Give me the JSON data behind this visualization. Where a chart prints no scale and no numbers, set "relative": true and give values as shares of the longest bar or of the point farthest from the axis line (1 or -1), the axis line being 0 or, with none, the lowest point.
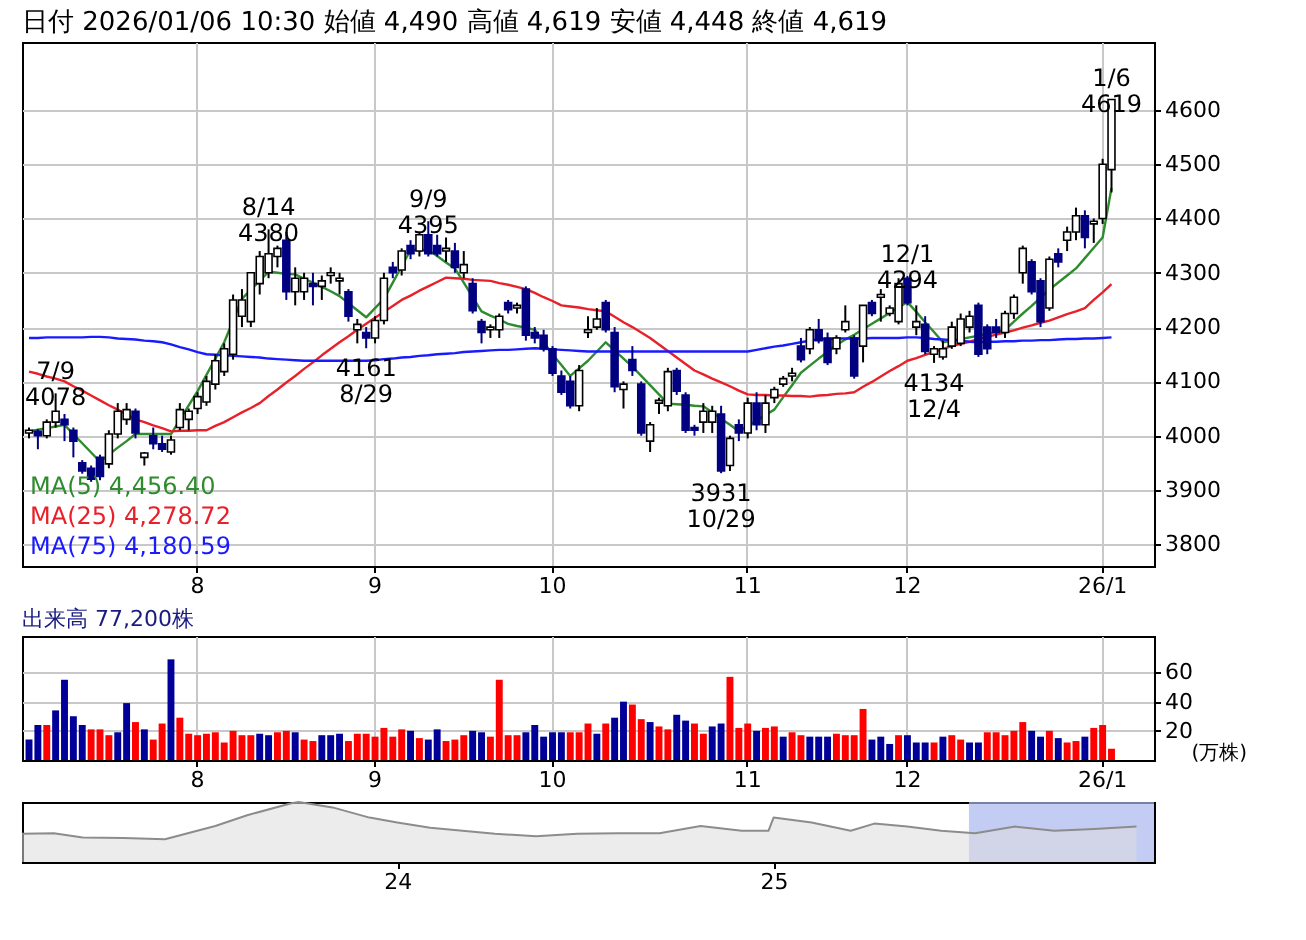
{
  "chart_data": [
    {
      "type": "candlestick",
      "title": "日付 2026/01/06 10:30 始値 4,490 高値 4,619 安値 4,448 終値 4,619",
      "categories": [
        null,
        null,
        null,
        null,
        null,
        null,
        null,
        null,
        null,
        null,
        null,
        null,
        null,
        null,
        null,
        null,
        null,
        null,
        null,
        "8",
        null,
        null,
        null,
        null,
        null,
        null,
        null,
        null,
        null,
        null,
        null,
        null,
        null,
        null,
        null,
        null,
        null,
        null,
        null,
        "9",
        null,
        null,
        null,
        null,
        null,
        null,
        null,
        null,
        null,
        null,
        null,
        null,
        null,
        null,
        null,
        null,
        null,
        null,
        null,
        "10",
        null,
        null,
        null,
        null,
        null,
        null,
        null,
        null,
        null,
        null,
        null,
        null,
        null,
        null,
        null,
        null,
        null,
        null,
        null,
        null,
        null,
        "11",
        null,
        null,
        null,
        null,
        null,
        null,
        null,
        null,
        null,
        null,
        null,
        null,
        null,
        null,
        null,
        null,
        null,
        "12",
        null,
        null,
        null,
        null,
        null,
        null,
        null,
        null,
        null,
        null,
        null,
        null,
        null,
        null,
        null,
        null,
        null,
        null,
        null,
        null,
        null,
        "26/1",
        null
      ],
      "ohlc": [
        [
          4005,
          4015,
          3995,
          4010
        ],
        [
          4008,
          4012,
          3975,
          4000
        ],
        [
          4000,
          4030,
          3995,
          4025
        ],
        [
          4025,
          4078,
          4015,
          4045
        ],
        [
          4030,
          4040,
          3990,
          4020
        ],
        [
          4010,
          4015,
          3960,
          3990
        ],
        [
          3950,
          3955,
          3930,
          3935
        ],
        [
          3940,
          3945,
          3915,
          3920
        ],
        [
          3960,
          3965,
          3918,
          3925
        ],
        [
          3948,
          4010,
          3940,
          4003
        ],
        [
          4003,
          4060,
          3995,
          4045
        ],
        [
          4030,
          4060,
          4020,
          4048
        ],
        [
          4045,
          4050,
          3995,
          4005
        ],
        [
          3960,
          3970,
          3945,
          3968
        ],
        [
          4000,
          4015,
          3975,
          3985
        ],
        [
          3985,
          4000,
          3970,
          3975
        ],
        [
          3970,
          4000,
          3965,
          3992
        ],
        [
          4015,
          4060,
          4010,
          4048
        ],
        [
          4030,
          4050,
          4010,
          4045
        ],
        [
          4050,
          4080,
          4040,
          4072
        ],
        [
          4062,
          4110,
          4055,
          4100
        ],
        [
          4095,
          4150,
          4085,
          4138
        ],
        [
          4118,
          4170,
          4110,
          4160
        ],
        [
          4150,
          4260,
          4140,
          4250
        ],
        [
          4220,
          4270,
          4200,
          4250
        ],
        [
          4210,
          4300,
          4200,
          4300
        ],
        [
          4280,
          4340,
          4260,
          4330
        ],
        [
          4300,
          4380,
          4290,
          4335
        ],
        [
          4330,
          4350,
          4310,
          4345
        ],
        [
          4360,
          4375,
          4250,
          4265
        ],
        [
          4265,
          4310,
          4240,
          4290
        ],
        [
          4265,
          4300,
          4250,
          4290
        ],
        [
          4280,
          4300,
          4240,
          4275
        ],
        [
          4275,
          4295,
          4250,
          4285
        ],
        [
          4295,
          4310,
          4280,
          4300
        ],
        [
          4285,
          4300,
          4260,
          4290
        ],
        [
          4265,
          4270,
          4210,
          4220
        ],
        [
          4195,
          4215,
          4170,
          4205
        ],
        [
          4190,
          4200,
          4161,
          4180
        ],
        [
          4180,
          4220,
          4170,
          4212
        ],
        [
          4212,
          4300,
          4205,
          4290
        ],
        [
          4310,
          4320,
          4290,
          4300
        ],
        [
          4305,
          4345,
          4295,
          4340
        ],
        [
          4350,
          4360,
          4325,
          4335
        ],
        [
          4340,
          4375,
          4330,
          4370
        ],
        [
          4370,
          4395,
          4330,
          4335
        ],
        [
          4350,
          4370,
          4330,
          4335
        ],
        [
          4340,
          4365,
          4320,
          4345
        ],
        [
          4340,
          4355,
          4300,
          4310
        ],
        [
          4300,
          4340,
          4290,
          4315
        ],
        [
          4280,
          4290,
          4225,
          4230
        ],
        [
          4210,
          4215,
          4170,
          4190
        ],
        [
          4195,
          4205,
          4180,
          4200
        ],
        [
          4195,
          4225,
          4180,
          4220
        ],
        [
          4245,
          4250,
          4225,
          4232
        ],
        [
          4235,
          4245,
          4225,
          4240
        ],
        [
          4270,
          4275,
          4175,
          4185
        ],
        [
          4190,
          4200,
          4170,
          4180
        ],
        [
          4185,
          4195,
          4155,
          4160
        ],
        [
          4160,
          4165,
          4110,
          4115
        ],
        [
          4110,
          4120,
          4075,
          4080
        ],
        [
          4100,
          4110,
          4050,
          4055
        ],
        [
          4055,
          4130,
          4045,
          4120
        ],
        [
          4190,
          4220,
          4180,
          4195
        ],
        [
          4200,
          4235,
          4195,
          4215
        ],
        [
          4245,
          4250,
          4190,
          4195
        ],
        [
          4190,
          4200,
          4080,
          4090
        ],
        [
          4085,
          4100,
          4050,
          4095
        ],
        [
          4140,
          4165,
          4110,
          4120
        ],
        [
          4095,
          4100,
          4000,
          4005
        ],
        [
          3990,
          4025,
          3970,
          4020
        ],
        [
          4060,
          4070,
          4040,
          4065
        ],
        [
          4055,
          4125,
          4045,
          4118
        ],
        [
          4120,
          4125,
          4075,
          4082
        ],
        [
          4075,
          4080,
          4005,
          4010
        ],
        [
          4015,
          4020,
          4000,
          4010
        ],
        [
          4025,
          4060,
          4005,
          4045
        ],
        [
          4025,
          4055,
          4005,
          4045
        ],
        [
          4040,
          4055,
          3931,
          3935
        ],
        [
          3945,
          4000,
          3935,
          3995
        ],
        [
          4020,
          4030,
          3990,
          4005
        ],
        [
          4005,
          4070,
          3995,
          4060
        ],
        [
          4060,
          4080,
          4010,
          4020
        ],
        [
          4020,
          4075,
          4005,
          4060
        ],
        [
          4070,
          4090,
          4060,
          4085
        ],
        [
          4095,
          4110,
          4090,
          4105
        ],
        [
          4110,
          4125,
          4100,
          4115
        ],
        [
          4165,
          4180,
          4135,
          4140
        ],
        [
          4160,
          4200,
          4150,
          4195
        ],
        [
          4195,
          4215,
          4170,
          4175
        ],
        [
          4180,
          4190,
          4130,
          4135
        ],
        [
          4160,
          4185,
          4150,
          4180
        ],
        [
          4195,
          4240,
          4190,
          4210
        ],
        [
          4180,
          4185,
          4105,
          4110
        ],
        [
          4165,
          4240,
          4135,
          4240
        ],
        [
          4245,
          4250,
          4220,
          4225
        ],
        [
          4255,
          4270,
          4210,
          4260
        ],
        [
          4225,
          4240,
          4220,
          4235
        ],
        [
          4210,
          4290,
          4205,
          4280
        ],
        [
          4290,
          4294,
          4240,
          4245
        ],
        [
          4200,
          4240,
          4185,
          4210
        ],
        [
          4205,
          4220,
          4150,
          4155
        ],
        [
          4150,
          4165,
          4134,
          4160
        ],
        [
          4145,
          4175,
          4140,
          4160
        ],
        [
          4165,
          4210,
          4160,
          4200
        ],
        [
          4170,
          4225,
          4165,
          4215
        ],
        [
          4200,
          4230,
          4190,
          4220
        ],
        [
          4240,
          4245,
          4145,
          4150
        ],
        [
          4200,
          4205,
          4150,
          4160
        ],
        [
          4200,
          4215,
          4180,
          4190
        ],
        [
          4190,
          4230,
          4180,
          4225
        ],
        [
          4225,
          4260,
          4215,
          4255
        ],
        [
          4300,
          4350,
          4280,
          4345
        ],
        [
          4320,
          4325,
          4260,
          4265
        ],
        [
          4285,
          4290,
          4200,
          4210
        ],
        [
          4235,
          4330,
          4230,
          4325
        ],
        [
          4335,
          4345,
          4310,
          4320
        ],
        [
          4360,
          4385,
          4340,
          4375
        ],
        [
          4375,
          4420,
          4360,
          4405
        ],
        [
          4405,
          4415,
          4345,
          4365
        ],
        [
          4390,
          4400,
          4355,
          4395
        ],
        [
          4400,
          4510,
          4390,
          4500
        ],
        [
          4490,
          4619,
          4448,
          4619
        ]
      ],
      "series": [
        {
          "name": "MA(5) 4,456.40",
          "type": "line",
          "color": "#2e8b2e",
          "values": [
            4008,
            4011,
            4014,
            4017,
            4020,
            4003,
            3986,
            3969,
            3952,
            3965,
            3978,
            3990,
            4003,
            4003,
            4003,
            4003,
            4003,
            4029,
            4056,
            4082,
            4112,
            4142,
            4172,
            4212,
            4252,
            4269,
            4285,
            4302,
            4300,
            4298,
            4297,
            4289,
            4282,
            4274,
            4266,
            4257,
            4244,
            4231,
            4218,
            4235,
            4252,
            4282,
            4312,
            4342,
            4342,
            4342,
            4331,
            4319,
            4308,
            4282,
            4255,
            4229,
            4221,
            4214,
            4206,
            4202,
            4199,
            4195,
            4172,
            4150,
            4130,
            4110,
            4124,
            4138,
            4155,
            4172,
            4157,
            4142,
            4127,
            4110,
            4093,
            4076,
            4059,
            4058,
            4057,
            4055,
            4054,
            4043,
            4031,
            4020,
            4008,
            4018,
            4028,
            4038,
            4048,
            4071,
            4093,
            4116,
            4129,
            4142,
            4154,
            4167,
            4177,
            4186,
            4196,
            4206,
            4216,
            4226,
            4236,
            4246,
            4228,
            4209,
            4191,
            4172,
            4175,
            4178,
            4181,
            4184,
            4188,
            4191,
            4195,
            4210,
            4225,
            4239,
            4254,
            4269,
            4282,
            4295,
            4308,
            4327,
            4346,
            4365,
            4456
          ]
        },
        {
          "name": "MA(25) 4,278.72",
          "type": "line",
          "color": "#e8202a",
          "values": [
            4118,
            4114,
            4109,
            4105,
            4100,
            4091,
            4083,
            4074,
            4065,
            4056,
            4048,
            4039,
            4030,
            4025,
            4019,
            4014,
            4008,
            4009,
            4009,
            4010,
            4010,
            4018,
            4025,
            4034,
            4043,
            4051,
            4060,
            4073,
            4085,
            4098,
            4110,
            4123,
            4135,
            4148,
            4160,
            4172,
            4183,
            4195,
            4206,
            4217,
            4228,
            4239,
            4250,
            4258,
            4267,
            4275,
            4283,
            4291,
            4290,
            4289,
            4287,
            4286,
            4285,
            4281,
            4278,
            4274,
            4270,
            4263,
            4255,
            4248,
            4240,
            4238,
            4236,
            4233,
            4231,
            4229,
            4219,
            4209,
            4200,
            4190,
            4180,
            4168,
            4156,
            4144,
            4132,
            4120,
            4113,
            4105,
            4098,
            4091,
            4083,
            4076,
            4075,
            4075,
            4074,
            4074,
            4073,
            4073,
            4072,
            4074,
            4075,
            4077,
            4078,
            4080,
            4090,
            4099,
            4109,
            4119,
            4128,
            4138,
            4143,
            4149,
            4154,
            4160,
            4165,
            4169,
            4173,
            4178,
            4182,
            4186,
            4190,
            4194,
            4199,
            4203,
            4208,
            4212,
            4218,
            4224,
            4229,
            4235,
            4250,
            4264,
            4279
          ]
        },
        {
          "name": "MA(75) 4,180.59",
          "type": "line",
          "color": "#1a1aff",
          "values": [
            4180,
            4180,
            4181,
            4181,
            4181,
            4181,
            4181,
            4182,
            4182,
            4181,
            4179,
            4178,
            4177,
            4175,
            4174,
            4172,
            4168,
            4163,
            4159,
            4154,
            4150,
            4149,
            4148,
            4147,
            4146,
            4145,
            4144,
            4142,
            4141,
            4140,
            4139,
            4138,
            4138,
            4138,
            4138,
            4138,
            4138,
            4138,
            4138,
            4139,
            4141,
            4142,
            4144,
            4145,
            4147,
            4148,
            4150,
            4151,
            4152,
            4154,
            4155,
            4156,
            4157,
            4158,
            4158,
            4159,
            4160,
            4161,
            4160,
            4159,
            4158,
            4157,
            4156,
            4155,
            4155,
            4155,
            4155,
            4155,
            4155,
            4155,
            4155,
            4155,
            4155,
            4155,
            4155,
            4155,
            4155,
            4155,
            4155,
            4155,
            4155,
            4155,
            4158,
            4161,
            4164,
            4166,
            4169,
            4172,
            4175,
            4178,
            4178,
            4179,
            4179,
            4179,
            4179,
            4180,
            4180,
            4180,
            4180,
            4181,
            4181,
            4180,
            4178,
            4177,
            4176,
            4175,
            4173,
            4172,
            4173,
            4173,
            4174,
            4174,
            4175,
            4175,
            4176,
            4176,
            4177,
            4178,
            4178,
            4179,
            4179,
            4180,
            4181
          ]
        }
      ],
      "ylim": [
        3760,
        4725
      ],
      "yticks": [
        3800,
        3900,
        4000,
        4100,
        4200,
        4300,
        4400,
        4500,
        4600
      ],
      "grid": true,
      "legend": "bottom left",
      "annotations": [
        {
          "text": "7/9 4078",
          "y": 4078
        },
        {
          "text": "8/14 4380",
          "y": 4380
        },
        {
          "text": "9/9 4395",
          "y": 4395
        },
        {
          "text": "4161 8/29",
          "y": 4161
        },
        {
          "text": "3931 10/29",
          "y": 3931
        },
        {
          "text": "12/1 4294",
          "y": 4294
        },
        {
          "text": "4134 12/4",
          "y": 4134
        },
        {
          "text": "1/6 4619",
          "y": 4619
        }
      ]
    },
    {
      "type": "bar",
      "title": "出来高 77,200株",
      "categories": [
        null,
        null,
        null,
        null,
        null,
        null,
        null,
        null,
        null,
        null,
        null,
        null,
        null,
        null,
        null,
        null,
        null,
        null,
        null,
        "8",
        null,
        null,
        null,
        null,
        null,
        null,
        null,
        null,
        null,
        null,
        null,
        null,
        null,
        null,
        null,
        null,
        null,
        null,
        null,
        "9",
        null,
        null,
        null,
        null,
        null,
        null,
        null,
        null,
        null,
        null,
        null,
        null,
        null,
        null,
        null,
        null,
        null,
        null,
        null,
        "10",
        null,
        null,
        null,
        null,
        null,
        null,
        null,
        null,
        null,
        null,
        null,
        null,
        null,
        null,
        null,
        null,
        null,
        null,
        null,
        null,
        null,
        "11",
        null,
        null,
        null,
        null,
        null,
        null,
        null,
        null,
        null,
        null,
        null,
        null,
        null,
        null,
        null,
        null,
        null,
        "12",
        null,
        null,
        null,
        null,
        null,
        null,
        null,
        null,
        null,
        null,
        null,
        null,
        null,
        null,
        null,
        null,
        null,
        null,
        null,
        null,
        null,
        "26/1",
        null
      ],
      "values": [
        14,
        24,
        24,
        34,
        55,
        30,
        24,
        21,
        21,
        17,
        19,
        39,
        26,
        21,
        14,
        25,
        69,
        29,
        18,
        17,
        18,
        19,
        12,
        20,
        17,
        17,
        18,
        17,
        19,
        20,
        19,
        14,
        13,
        17,
        17,
        18,
        13,
        18,
        18,
        16,
        22,
        16,
        21,
        20,
        15,
        14,
        21,
        13,
        14,
        17,
        20,
        19,
        16,
        55,
        17,
        17,
        19,
        24,
        16,
        19,
        19,
        19,
        19,
        25,
        18,
        25,
        29,
        40,
        38,
        28,
        26,
        23,
        21,
        31,
        27,
        25,
        18,
        23,
        25,
        57,
        22,
        25,
        20,
        22,
        23,
        16,
        19,
        17,
        16,
        16,
        16,
        18,
        17,
        17,
        35,
        14,
        16,
        11,
        17,
        17,
        12,
        12,
        12,
        16,
        17,
        14,
        12,
        12,
        19,
        19,
        17,
        20,
        26,
        20,
        16,
        20,
        15,
        12,
        13,
        16,
        22,
        24,
        7.72
      ],
      "colors": [
        "#000099",
        "#000099",
        "#ff0000",
        "#000099",
        "#000099",
        "#000099",
        "#000099",
        "#ff0000",
        "#ff0000",
        "#ff0000",
        "#000099",
        "#000099",
        "#ff0000",
        "#000099",
        "#ff0000",
        "#ff0000",
        "#000099",
        "#ff0000",
        "#ff0000",
        "#ff0000",
        "#ff0000",
        "#ff0000",
        "#ff0000",
        "#ff0000",
        "#ff0000",
        "#ff0000",
        "#000099",
        "#000099",
        "#ff0000",
        "#ff0000",
        "#000099",
        "#ff0000",
        "#ff0000",
        "#000099",
        "#000099",
        "#000099",
        "#ff0000",
        "#ff0000",
        "#ff0000",
        "#ff0000",
        "#ff0000",
        "#ff0000",
        "#ff0000",
        "#000099",
        "#ff0000",
        "#000099",
        "#000099",
        "#ff0000",
        "#ff0000",
        "#ff0000",
        "#000099",
        "#000099",
        "#ff0000",
        "#ff0000",
        "#ff0000",
        "#ff0000",
        "#000099",
        "#000099",
        "#000099",
        "#000099",
        "#000099",
        "#ff0000",
        "#ff0000",
        "#ff0000",
        "#000099",
        "#ff0000",
        "#000099",
        "#000099",
        "#ff0000",
        "#ff0000",
        "#000099",
        "#ff0000",
        "#ff0000",
        "#000099",
        "#000099",
        "#ff0000",
        "#ff0000",
        "#000099",
        "#000099",
        "#ff0000",
        "#ff0000",
        "#ff0000",
        "#000099",
        "#ff0000",
        "#ff0000",
        "#000099",
        "#ff0000",
        "#ff0000",
        "#000099",
        "#000099",
        "#000099",
        "#ff0000",
        "#ff0000",
        "#ff0000",
        "#ff0000",
        "#000099",
        "#000099",
        "#000099",
        "#ff0000",
        "#000099",
        "#000099",
        "#000099",
        "#ff0000",
        "#000099",
        "#ff0000",
        "#ff0000",
        "#000099",
        "#000099",
        "#ff0000",
        "#ff0000",
        "#ff0000",
        "#ff0000",
        "#ff0000",
        "#000099",
        "#000099",
        "#ff0000",
        "#000099",
        "#ff0000",
        "#ff0000",
        "#000099",
        "#ff0000",
        "#ff0000",
        "#ff0000"
      ],
      "ylim": [
        0,
        85
      ],
      "yticks": [
        20,
        40,
        60
      ],
      "ylabel": "(万株)",
      "grid": true
    },
    {
      "type": "area",
      "relative": true,
      "tick_labels": "x",
      "x": [
        "2023-01-01",
        "2023-02-01",
        "2023-03-01",
        "2023-04-10",
        "2023-05-20",
        "2023-07-08",
        "2023-08-08",
        "2023-09-20",
        "2023-09-27",
        "2023-10-30",
        "2023-12-05",
        "2024-01-01",
        "2024-02-02",
        "2024-04-05",
        "2024-05-15",
        "2024-06-24",
        "2024-08-03",
        "2024-09-12",
        "2024-10-22",
        "2024-12-01",
        "2024-12-27",
        "2025-01-01",
        "2025-02-07",
        "2025-03-17",
        "2025-04-09",
        "2025-05-11",
        "2025-06-13",
        "2025-07-16",
        "2025-08-24",
        "2025-10-01",
        "2025-11-09",
        "2025-12-20"
      ],
      "series": [
        {
          "color": "#8c8c8c",
          "values": [
            0.47,
            0.48,
            0.41,
            0.4,
            0.38,
            0.6,
            0.78,
            0.98,
            1.0,
            0.91,
            0.74,
            0.66,
            0.57,
            0.47,
            0.43,
            0.47,
            0.48,
            0.48,
            0.6,
            0.52,
            0.52,
            0.74,
            0.66,
            0.52,
            0.64,
            0.59,
            0.52,
            0.48,
            0.59,
            0.52,
            0.55,
            0.59
          ]
        }
      ],
      "xlim": [
        "2023-01-01",
        "2026-01-06"
      ],
      "xticks": [
        {
          "value": "2024-01-01",
          "label": "24"
        },
        {
          "value": "2025-01-01",
          "label": "25"
        }
      ],
      "bands": [
        {
          "axis": "x",
          "from": "2025-07-10",
          "to": "2026-01-06",
          "color": "#aab8f0"
        }
      ]
    }
  ]
}
